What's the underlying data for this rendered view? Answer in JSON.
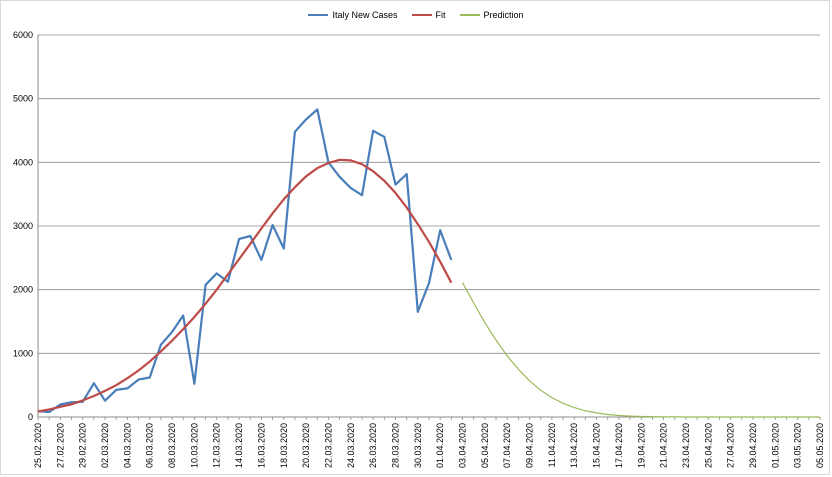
{
  "chart_data": {
    "type": "line",
    "title": "",
    "xlabel": "",
    "ylabel": "",
    "ylim": [
      0,
      6000
    ],
    "yticks": [
      0,
      1000,
      2000,
      3000,
      4000,
      5000,
      6000
    ],
    "grid": "horizontal",
    "legend_position": "top-center",
    "x_start": "25.02.2020",
    "x_end": "05.05.2020",
    "xtick_labels": [
      "25.02.2020",
      "27.02.2020",
      "29.02.2020",
      "02.03.2020",
      "04.03.2020",
      "06.03.2020",
      "08.03.2020",
      "10.03.2020",
      "12.03.2020",
      "14.03.2020",
      "16.03.2020",
      "18.03.2020",
      "20.03.2020",
      "22.03.2020",
      "24.03.2020",
      "26.03.2020",
      "28.03.2020",
      "30.03.2020",
      "01.04.2020",
      "03.04.2020",
      "05.04.2020",
      "07.04.2020",
      "09.04.2020",
      "11.04.2020",
      "13.04.2020",
      "15.04.2020",
      "17.04.2020",
      "19.04.2020",
      "21.04.2020",
      "23.04.2020",
      "25.04.2020",
      "27.04.2020",
      "29.04.2020",
      "01.05.2020",
      "03.05.2020",
      "05.05.2020"
    ],
    "series": [
      {
        "name": "Italy New Cases",
        "color": "#4a7ebb",
        "start": "25.02.2020",
        "values": [
          93,
          78,
          197,
          233,
          239,
          531,
          256,
          425,
          450,
          587,
          620,
          1135,
          1337,
          1595,
          522,
          2077,
          2256,
          2125,
          2798,
          2843,
          2467,
          3014,
          2647,
          4480,
          4674,
          4832,
          3998,
          3773,
          3595,
          3484,
          4496,
          4401,
          3651,
          3815,
          1650,
          2104,
          2934,
          2467
        ]
      },
      {
        "name": "Fit",
        "color": "#be4b48",
        "start": "25.02.2020",
        "values": [
          87,
          120,
          160,
          200,
          260,
          330,
          410,
          500,
          610,
          730,
          870,
          1030,
          1200,
          1380,
          1570,
          1780,
          2000,
          2240,
          2480,
          2720,
          2960,
          3200,
          3420,
          3610,
          3780,
          3910,
          3990,
          4040,
          4030,
          3970,
          3860,
          3710,
          3520,
          3290,
          3030,
          2750,
          2440,
          2110
        ]
      },
      {
        "name": "Prediction",
        "color": "#9bbb59",
        "start": "03.04.2020",
        "values": [
          2110,
          1790,
          1480,
          1210,
          960,
          750,
          570,
          420,
          305,
          215,
          148,
          98,
          64,
          40,
          24,
          14,
          8,
          4,
          2,
          1,
          0,
          0,
          0,
          0,
          0,
          0,
          0,
          0,
          0,
          0,
          0,
          0,
          0
        ]
      }
    ]
  }
}
